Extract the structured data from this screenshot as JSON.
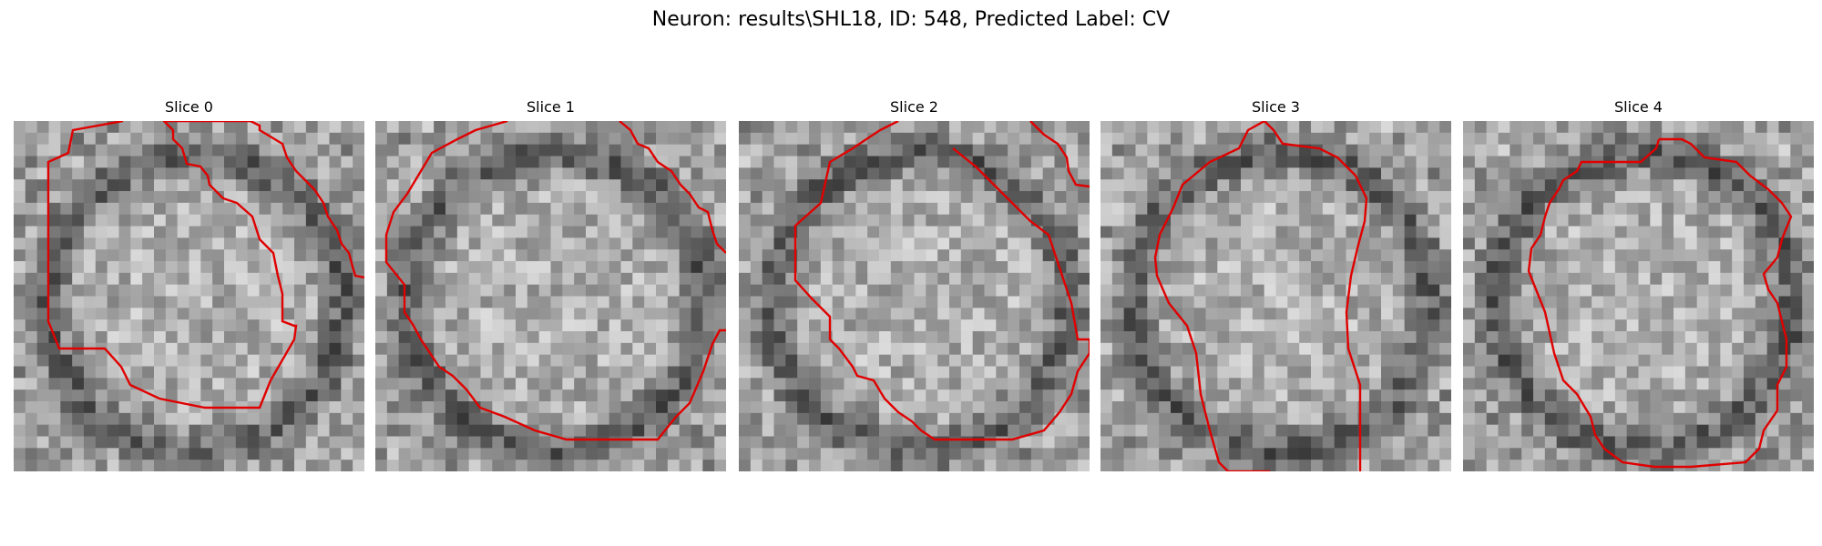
{
  "figure": {
    "title": "Neuron: results\\SHL18, ID: 548, Predicted Label: CV"
  },
  "panels": [
    {
      "title": "Slice 0"
    },
    {
      "title": "Slice 1"
    },
    {
      "title": "Slice 2"
    },
    {
      "title": "Slice 3"
    },
    {
      "title": "Slice 4"
    }
  ],
  "colors": {
    "contour": "#e00000",
    "background": "#ffffff"
  }
}
